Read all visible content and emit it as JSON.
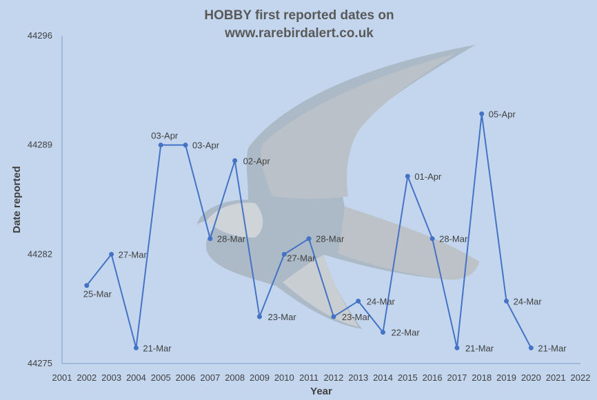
{
  "chart_data": {
    "type": "line",
    "title_lines": [
      "HOBBY first reported dates on",
      "www.rarebirdalert.co.uk"
    ],
    "xlabel": "Year",
    "ylabel": "Date reported",
    "xlim": [
      2001,
      2022
    ],
    "ylim": [
      44275,
      44296
    ],
    "x_ticks": [
      "2001",
      "2002",
      "2003",
      "2004",
      "2005",
      "2006",
      "2007",
      "2008",
      "2009",
      "2010",
      "2011",
      "2012",
      "2013",
      "2014",
      "2015",
      "2016",
      "2017",
      "2018",
      "2019",
      "2020",
      "2021",
      "2022"
    ],
    "y_ticks": [
      "44275",
      "44282",
      "44289",
      "44296"
    ],
    "grid": false,
    "legend": "none",
    "series": [
      {
        "color": "#4472c4",
        "x": [
          2002,
          2003,
          2004,
          2005,
          2006,
          2007,
          2008,
          2009,
          2010,
          2011,
          2012,
          2013,
          2014,
          2015,
          2016,
          2017,
          2018,
          2019,
          2020
        ],
        "y": [
          44280,
          44282,
          44276,
          44289,
          44289,
          44283,
          44288,
          44278,
          44282,
          44283,
          44278,
          44279,
          44277,
          44287,
          44283,
          44276,
          44291,
          44279,
          44276
        ],
        "labels": [
          "25-Mar",
          "27-Mar",
          "21-Mar",
          "03-Apr",
          "03-Apr",
          "28-Mar",
          "02-Apr",
          "23-Mar",
          "27-Mar",
          "28-Mar",
          "23-Mar",
          "24-Mar",
          "22-Mar",
          "01-Apr",
          "28-Mar",
          "21-Mar",
          "05-Apr",
          "24-Mar",
          "21-Mar"
        ]
      }
    ]
  }
}
